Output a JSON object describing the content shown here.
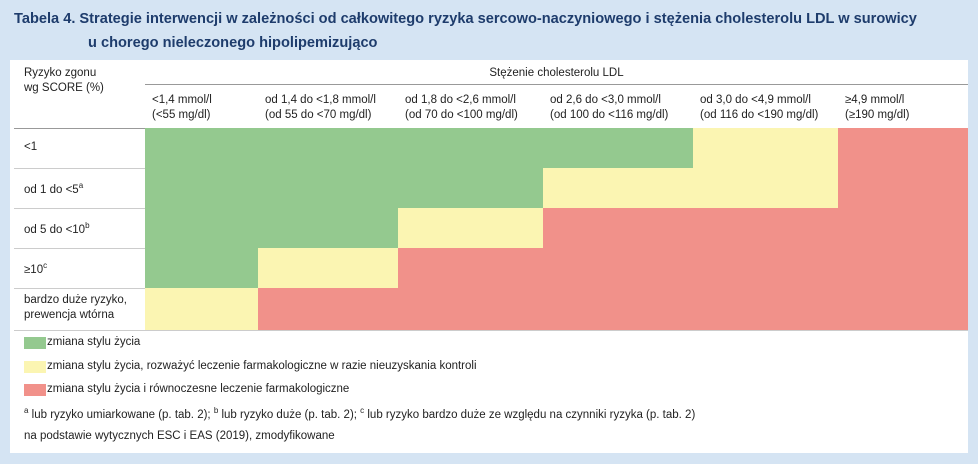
{
  "header": {
    "title_line1": "Tabela 4. Strategie interwencji w zależności od całkowitego ryzyka sercowo-naczyniowego i stężenia cholesterolu LDL w surowicy",
    "title_line2": "u chorego nieleczonego hipolipemizująco"
  },
  "table": {
    "row_header_line1": "Ryzyko zgonu",
    "row_header_line2": "wg SCORE (%)",
    "group_header": "Stężenie cholesterolu LDL",
    "columns": [
      [
        "<1,4 mmol/l",
        "(<55 mg/dl)"
      ],
      [
        "od 1,4 do <1,8 mmol/l",
        "(od 55 do <70 mg/dl)"
      ],
      [
        "od 1,8 do <2,6 mmol/l",
        "(od 70 do <100 mg/dl)"
      ],
      [
        "od 2,6 do <3,0 mmol/l",
        "(od 100 do <116 mg/dl)"
      ],
      [
        "od 3,0 do <4,9 mmol/l",
        "(od 116 do <190 mg/dl)"
      ],
      [
        "≥4,9 mmol/l",
        "(≥190 mg/dl)"
      ]
    ],
    "rows": [
      {
        "label": [
          "<1"
        ],
        "cells": [
          "#94c98f",
          "#94c98f",
          "#94c98f",
          "#94c98f",
          "#fbf5b2",
          "#f1918a"
        ]
      },
      {
        "label": [
          "od 1 do <5"
        ],
        "sup": "a",
        "cells": [
          "#94c98f",
          "#94c98f",
          "#94c98f",
          "#fbf5b2",
          "#fbf5b2",
          "#f1918a"
        ]
      },
      {
        "label": [
          "od 5 do <10"
        ],
        "sup": "b",
        "cells": [
          "#94c98f",
          "#94c98f",
          "#fbf5b2",
          "#f1918a",
          "#f1918a",
          "#f1918a"
        ]
      },
      {
        "label": [
          "≥10"
        ],
        "sup": "c",
        "cells": [
          "#94c98f",
          "#fbf5b2",
          "#f1918a",
          "#f1918a",
          "#f1918a",
          "#f1918a"
        ]
      },
      {
        "label": [
          "bardzo duże ryzyko,",
          "prewencja wtórna"
        ],
        "cells": [
          "#fbf5b2",
          "#f1918a",
          "#f1918a",
          "#f1918a",
          "#f1918a",
          "#f1918a"
        ]
      }
    ]
  },
  "legend": [
    {
      "color": "#94c98f",
      "text": "zmiana stylu życia"
    },
    {
      "color": "#fbf5b2",
      "text": "zmiana stylu życia, rozważyć leczenie farmakologiczne w razie nieuzyskania kontroli"
    },
    {
      "color": "#f1918a",
      "text": "zmiana stylu życia i równoczesne leczenie farmakologiczne"
    }
  ],
  "footnotes": [
    {
      "sup": "a",
      "text": " lub ryzyko umiarkowane (p. tab. 2); "
    },
    {
      "sup": "b",
      "text": " lub ryzyko duże (p. tab. 2); "
    },
    {
      "sup": "c",
      "text": " lub ryzyko bardzo duże ze względu na czynniki ryzyka (p. tab. 2)"
    }
  ],
  "source": "na podstawie wytycznych ESC i EAS (2019), zmodyfikowane"
}
